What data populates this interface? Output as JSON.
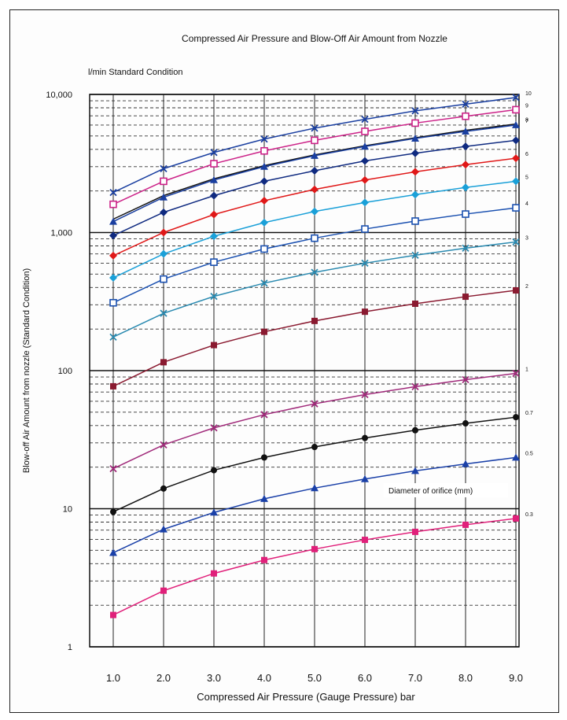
{
  "chart_data": {
    "type": "line",
    "title": "Compressed Air Pressure and Blow-Off Air Amount from Nozzle",
    "unit_label": "l/min   Standard Condition",
    "xlabel": "Compressed Air Pressure (Gauge Pressure) bar",
    "ylabel": "Blow-off Air Amount from nozzle (Standard Condition)",
    "y_scale": "log",
    "ylim": [
      1,
      10000
    ],
    "xlim": [
      1.0,
      9.0
    ],
    "x_ticks": [
      "1.0",
      "2.0",
      "3.0",
      "4.0",
      "5.0",
      "6.0",
      "7.0",
      "8.0",
      "9.0"
    ],
    "y_ticks": [
      "1",
      "10",
      "100",
      "1,000",
      "10,000"
    ],
    "legend_title": "Diameter of orifice (mm)",
    "grid": true,
    "x": [
      1,
      2,
      3,
      4,
      5,
      6,
      7,
      8,
      9
    ],
    "series": [
      {
        "name": "10",
        "color": "#1a3fa0",
        "marker": "x",
        "values": [
          1950,
          2900,
          3800,
          4750,
          5700,
          6600,
          7600,
          8500,
          9500
        ]
      },
      {
        "name": "9",
        "color": "#cc2288",
        "marker": "square-open",
        "values": [
          1600,
          2350,
          3150,
          3900,
          4650,
          5400,
          6200,
          6950,
          7750
        ]
      },
      {
        "name": "8",
        "color": "#111111",
        "marker": "none",
        "values": [
          1250,
          1850,
          2450,
          3050,
          3650,
          4250,
          4850,
          5500,
          6100
        ]
      },
      {
        "name": "7",
        "color": "#1a3fa0",
        "marker": "triangle",
        "values": [
          1200,
          1800,
          2400,
          3000,
          3600,
          4200,
          4800,
          5400,
          6000
        ]
      },
      {
        "name": "",
        "color": "#0f2a80",
        "marker": "diamond",
        "values": [
          950,
          1400,
          1850,
          2350,
          2800,
          3300,
          3750,
          4200,
          4650
        ]
      },
      {
        "name": "6",
        "color": "#e01818",
        "marker": "diamond",
        "values": [
          680,
          1000,
          1350,
          1700,
          2050,
          2400,
          2750,
          3100,
          3450
        ]
      },
      {
        "name": "5",
        "color": "#1aa0d8",
        "marker": "diamond",
        "values": [
          470,
          700,
          940,
          1180,
          1420,
          1650,
          1880,
          2120,
          2350
        ]
      },
      {
        "name": "4",
        "color": "#1a50b0",
        "marker": "square-open",
        "values": [
          310,
          460,
          610,
          760,
          910,
          1060,
          1210,
          1360,
          1510
        ]
      },
      {
        "name": "3",
        "color": "#2a8ab0",
        "marker": "x",
        "values": [
          175,
          260,
          345,
          430,
          515,
          600,
          685,
          770,
          855
        ]
      },
      {
        "name": "2",
        "color": "#8a1a30",
        "marker": "square",
        "values": [
          77,
          115,
          153,
          191,
          229,
          267,
          305,
          343,
          381
        ]
      },
      {
        "name": "1",
        "color": "#a02a7a",
        "marker": "x",
        "values": [
          19.5,
          29,
          38.5,
          48,
          57.5,
          67,
          76.5,
          86,
          95.5
        ]
      },
      {
        "name": "0.7",
        "color": "#111111",
        "marker": "circle",
        "values": [
          9.5,
          14,
          19,
          23.5,
          28,
          32.5,
          37,
          41.5,
          46
        ]
      },
      {
        "name": "0.5",
        "color": "#1a40a8",
        "marker": "triangle",
        "values": [
          4.8,
          7.1,
          9.4,
          11.8,
          14.1,
          16.4,
          18.8,
          21.1,
          23.5
        ]
      },
      {
        "name": "0.3",
        "color": "#e0207a",
        "marker": "square",
        "values": [
          1.7,
          2.55,
          3.4,
          4.25,
          5.1,
          5.95,
          6.8,
          7.65,
          8.5
        ]
      }
    ]
  }
}
